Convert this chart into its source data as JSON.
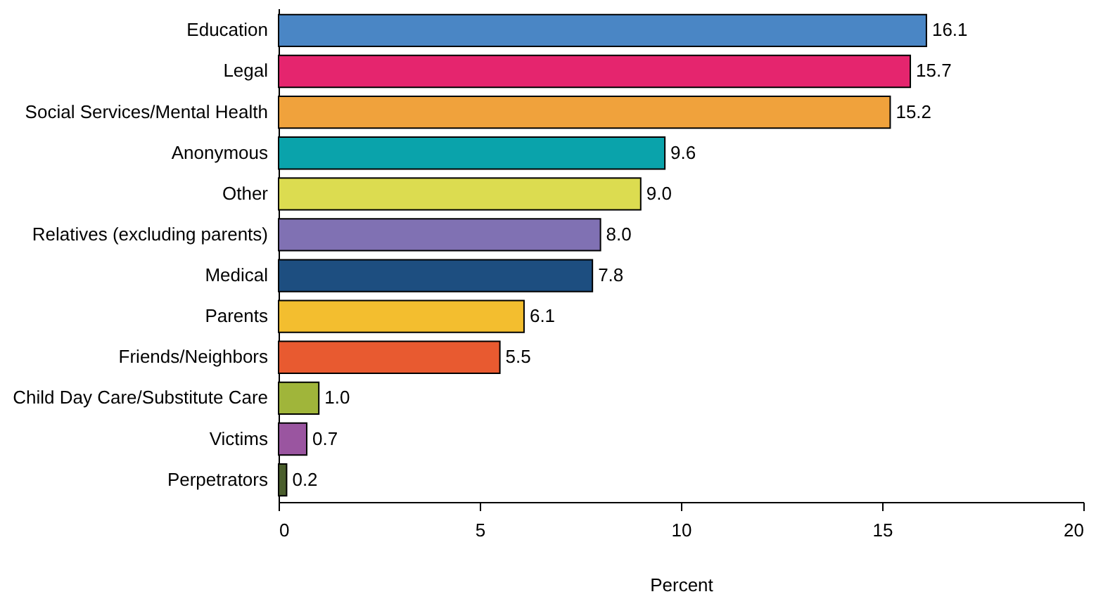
{
  "chart_data": {
    "type": "bar",
    "orientation": "horizontal",
    "xlabel": "Percent",
    "categories": [
      "Education",
      "Legal",
      "Social Services/Mental Health",
      "Anonymous",
      "Other",
      "Relatives (excluding parents)",
      "Medical",
      "Parents",
      "Friends/Neighbors",
      "Child Day Care/Substitute Care",
      "Victims",
      "Perpetrators"
    ],
    "values": [
      16.1,
      15.7,
      15.2,
      9.6,
      9.0,
      8.0,
      7.8,
      6.1,
      5.5,
      1.0,
      0.7,
      0.2
    ],
    "value_labels": [
      "16.1",
      "15.7",
      "15.2",
      "9.6",
      "9.0",
      "8.0",
      "7.8",
      "6.1",
      "5.5",
      "1.0",
      "0.7",
      "0.2"
    ],
    "colors": [
      "#4a86c5",
      "#e5256e",
      "#f0a23c",
      "#0aa3ab",
      "#dcdc50",
      "#8071b3",
      "#1d4e80",
      "#f3be2f",
      "#e85a30",
      "#a0b53a",
      "#9a55a0",
      "#4a5e2c"
    ],
    "xlim": [
      0,
      20
    ],
    "xticks": [
      0,
      5,
      10,
      15,
      20
    ],
    "grid": false
  }
}
